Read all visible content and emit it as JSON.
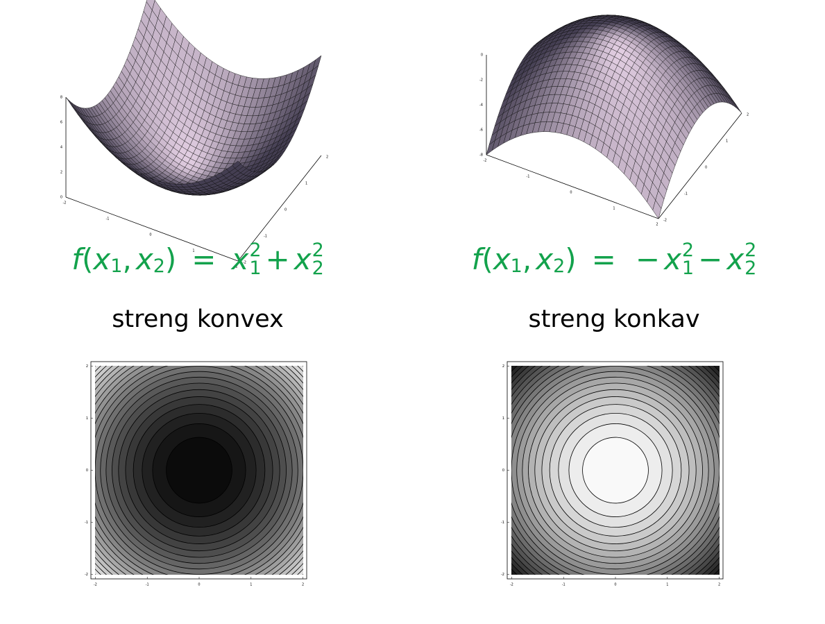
{
  "panels": [
    {
      "surface_axes": {
        "x_ticks": [
          -2,
          -1,
          0,
          1,
          2
        ],
        "y_ticks": [
          -2,
          -1,
          0,
          1,
          2
        ],
        "z_ticks": [
          0,
          2,
          4,
          6,
          8
        ]
      },
      "formula": {
        "name": "f",
        "open": "(",
        "args": [
          {
            "base": "x",
            "sub": "1"
          },
          {
            "base": "x",
            "sub": "2"
          }
        ],
        "sep": ",",
        "close": ")",
        "eq": "=",
        "terms": [
          {
            "base": "x",
            "sub": "1",
            "sup": "2"
          },
          {
            "op": "+",
            "base": "x",
            "sub": "2",
            "sup": "2"
          }
        ]
      },
      "caption": "streng konvex",
      "contour_axes": {
        "x_ticks": [
          -2,
          -1,
          0,
          1,
          2
        ],
        "y_ticks": [
          -2,
          -1,
          0,
          1,
          2
        ]
      }
    },
    {
      "surface_axes": {
        "x_ticks": [
          -2,
          -1,
          0,
          1,
          2
        ],
        "y_ticks": [
          -2,
          -1,
          0,
          1,
          2
        ],
        "z_ticks": [
          0,
          -2,
          -4,
          -6,
          -8
        ]
      },
      "formula": {
        "name": "f",
        "open": "(",
        "args": [
          {
            "base": "x",
            "sub": "1"
          },
          {
            "base": "x",
            "sub": "2"
          }
        ],
        "sep": ",",
        "close": ")",
        "eq": "=",
        "terms": [
          {
            "op": "−",
            "base": "x",
            "sub": "1",
            "sup": "2"
          },
          {
            "op": "−",
            "base": "x",
            "sub": "2",
            "sup": "2"
          }
        ]
      },
      "caption": "streng konkav",
      "contour_axes": {
        "x_ticks": [
          -2,
          -1,
          0,
          1,
          2
        ],
        "y_ticks": [
          -2,
          -1,
          0,
          1,
          2
        ]
      }
    }
  ]
}
